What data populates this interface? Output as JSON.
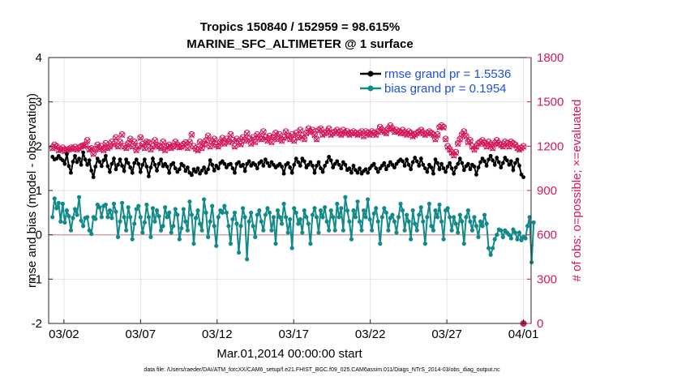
{
  "chart_data": {
    "type": "line",
    "title": "Tropics 150840 / 152959 = 98.615%",
    "subtitle": "MARINE_SFC_ALTIMETER @ 1 surface",
    "xlabel": "Mar.01,2014 00:00:00 start",
    "ylabel": "rmse and bias (model - observation)",
    "y2label": "# of obs: o=possible; ×=evaluated",
    "footer": "data file: /Users/raeder/DAI/ATM_forcXX/CAM6_setup/f.e21.FHIST_BGC.f09_025.CAM6assim.011/Diags_NTrS_2014-03/obs_diag_output.nc",
    "xlim": [
      0,
      31.5
    ],
    "ylim": [
      -2,
      4
    ],
    "y2lim": [
      0,
      1800
    ],
    "x_ticks": [
      {
        "v": 1,
        "label": "03/02"
      },
      {
        "v": 6,
        "label": "03/07"
      },
      {
        "v": 11,
        "label": "03/12"
      },
      {
        "v": 16,
        "label": "03/17"
      },
      {
        "v": 21,
        "label": "03/22"
      },
      {
        "v": 26,
        "label": "03/27"
      },
      {
        "v": 31,
        "label": "04/01"
      }
    ],
    "y_ticks": [
      -2,
      -1,
      0,
      1,
      2,
      3,
      4
    ],
    "y2_ticks": [
      0,
      300,
      600,
      900,
      1200,
      1500,
      1800
    ],
    "grid": true,
    "legend_position": "top-right",
    "colors": {
      "rmse": "#000000",
      "bias": "#138a8a",
      "obs": "#d6175c",
      "zero": "#c8a6a6",
      "axis_left": "#000000",
      "axis_right": "#d6175c",
      "legend_text": "#1f4fe0"
    },
    "series": [
      {
        "name": "rmse grand pr = 1.5536",
        "key": "rmse",
        "values": [
          1.76,
          1.7,
          1.72,
          1.78,
          1.72,
          1.68,
          1.6,
          1.82,
          1.55,
          1.4,
          1.65,
          1.78,
          1.64,
          1.72,
          1.58,
          1.86,
          1.7,
          1.58,
          1.68,
          1.45,
          1.3,
          1.54,
          1.72,
          1.65,
          1.55,
          1.68,
          1.78,
          1.55,
          1.42,
          1.6,
          1.72,
          1.48,
          1.58,
          1.7,
          1.56,
          1.44,
          1.7,
          1.62,
          1.52,
          1.4,
          1.62,
          1.7,
          1.6,
          1.42,
          1.58,
          1.7,
          1.54,
          1.32,
          1.52,
          1.72,
          1.58,
          1.45,
          1.6,
          1.7,
          1.55,
          1.6,
          1.54,
          1.4,
          1.58,
          1.62,
          1.5,
          1.42,
          1.48,
          1.6,
          1.56,
          1.44,
          1.52,
          1.4,
          1.35,
          1.48,
          1.42,
          1.5,
          1.38,
          1.45,
          1.52,
          1.4,
          1.48,
          1.68,
          1.58,
          1.45,
          1.56,
          1.5,
          1.62,
          1.66,
          1.6,
          1.52,
          1.58,
          1.6,
          1.5,
          1.4,
          1.6,
          1.64,
          1.55,
          1.58,
          1.44,
          1.6,
          1.66,
          1.56,
          1.62,
          1.58,
          1.5,
          1.62,
          1.66,
          1.56,
          1.7,
          1.62,
          1.55,
          1.64,
          1.58,
          1.52,
          1.56,
          1.6,
          1.54,
          1.38,
          1.58,
          1.62,
          1.52,
          1.4,
          1.58,
          1.72,
          1.64,
          1.56,
          1.72,
          1.66,
          1.52,
          1.58,
          1.64,
          1.56,
          1.4,
          1.56,
          1.64,
          1.5,
          1.42,
          1.56,
          1.64,
          1.76,
          1.68,
          1.52,
          1.6,
          1.66,
          1.58,
          1.5,
          1.64,
          1.58,
          1.46,
          1.5,
          1.4,
          1.56,
          1.46,
          1.4,
          1.5,
          1.38,
          1.44,
          1.48,
          1.4,
          1.5,
          1.56,
          1.6,
          1.5,
          1.42,
          1.5,
          1.56,
          1.62,
          1.48,
          1.56,
          1.64,
          1.58,
          1.52,
          1.6,
          1.66,
          1.7,
          1.66,
          1.56,
          1.7,
          1.58,
          1.48,
          1.64,
          1.74,
          1.66,
          1.56,
          1.72,
          1.58,
          1.5,
          1.42,
          1.58,
          1.52,
          1.38,
          1.7,
          1.62,
          1.48,
          1.6,
          1.5,
          1.42,
          1.54,
          1.62,
          1.5,
          1.38,
          1.52,
          1.6,
          1.72,
          1.62,
          1.46,
          1.55,
          1.6,
          1.48,
          1.58,
          1.54,
          1.36,
          1.52,
          1.64,
          1.72,
          1.66,
          1.56,
          1.7,
          1.78,
          1.68,
          1.58,
          1.74,
          1.64,
          1.52,
          1.62,
          1.74,
          1.68,
          1.58,
          1.66,
          1.46,
          1.62,
          1.7,
          1.56,
          1.36,
          1.3
        ]
      },
      {
        "name": "bias grand pr = 0.1954",
        "key": "bias",
        "values": [
          0.4,
          0.82,
          0.6,
          0.72,
          0.3,
          0.7,
          0.28,
          0.55,
          0.42,
          0.1,
          0.38,
          0.58,
          0.45,
          0.85,
          0.32,
          0.2,
          0.38,
          0.4,
          0.1,
          0.02,
          0.4,
          0.36,
          0.68,
          0.62,
          0.4,
          0.65,
          0.68,
          0.4,
          0.55,
          0.38,
          0.7,
          0.52,
          -0.05,
          0.3,
          0.72,
          0.4,
          0.1,
          0.62,
          0.4,
          -0.1,
          0.25,
          0.58,
          0.65,
          0.4,
          0.05,
          0.28,
          0.68,
          0.4,
          -0.05,
          0.6,
          0.3,
          0.55,
          0.42,
          0.1,
          0.2,
          0.62,
          0.4,
          0.5,
          0.05,
          0.2,
          0.58,
          0.45,
          -0.1,
          0.15,
          0.58,
          0.3,
          0.1,
          0.75,
          0.45,
          -0.2,
          0.38,
          0.55,
          0.25,
          0.1,
          0.8,
          0.5,
          -0.05,
          0.3,
          0.65,
          0.2,
          -0.25,
          0.4,
          0.55,
          0.5,
          0.65,
          0.5,
          0.2,
          -0.2,
          0.35,
          0.5,
          0.25,
          -0.4,
          0.2,
          0.6,
          0.4,
          -0.55,
          0.3,
          0.5,
          0.2,
          -0.05,
          0.45,
          0.55,
          0.3,
          0.1,
          0.45,
          0.6,
          0.5,
          0.1,
          0.4,
          -0.2,
          0.55,
          0.4,
          0.25,
          0.7,
          0.4,
          0.05,
          0.35,
          -0.3,
          0.6,
          0.5,
          0.25,
          0.35,
          0.05,
          0.55,
          0.4,
          0.25,
          -0.2,
          0.45,
          0.6,
          0.4,
          0.05,
          0.55,
          0.4,
          0.62,
          0.3,
          0.1,
          0.55,
          0.4,
          0.1,
          0.7,
          0.4,
          0.6,
          0.1,
          0.85,
          0.55,
          0.3,
          -0.1,
          0.55,
          0.4,
          0.75,
          0.3,
          0.1,
          0.55,
          0.4,
          0.8,
          0.35,
          0.1,
          0.48,
          0.6,
          0.3,
          -0.2,
          0.4,
          0.6,
          0.5,
          0.1,
          0.38,
          0.45,
          0.3,
          0.05,
          0.4,
          0.7,
          0.55,
          0.1,
          0.45,
          0.3,
          -0.1,
          0.55,
          0.25,
          0.1,
          0.45,
          0.62,
          0.3,
          -0.2,
          0.4,
          0.7,
          0.2,
          0.1,
          0.55,
          0.4,
          0.68,
          0.3,
          -0.1,
          0.55,
          0.6,
          0.4,
          0.1,
          0.4,
          0.25,
          0.05,
          0.45,
          0.3,
          -0.2,
          0.4,
          0.55,
          0.3,
          0.1,
          0.4,
          0.2,
          -0.05,
          0.3,
          0.2,
          0.45,
          0.25,
          -0.3,
          -0.45,
          -0.3,
          -0.1,
          0.0,
          0.12,
          0.1,
          -0.05,
          0.1,
          0.05,
          0.0,
          -0.08,
          0.12,
          0.05,
          -0.1,
          0.05,
          -0.12,
          -0.05,
          -0.08,
          0.2,
          0.4,
          -0.62,
          0.28
        ]
      },
      {
        "name": "obs_possible",
        "key": "obs_possible",
        "values": [
          1190,
          1210,
          1200,
          1175,
          1180,
          1190,
          1170,
          1175,
          1180,
          1190,
          1185,
          1195,
          1180,
          1190,
          1200,
          1205,
          1210,
          1240,
          1180,
          1185,
          1150,
          1180,
          1210,
          1185,
          1200,
          1175,
          1220,
          1190,
          1200,
          1230,
          1215,
          1260,
          1200,
          1230,
          1280,
          1200,
          1190,
          1220,
          1250,
          1200,
          1230,
          1175,
          1200,
          1260,
          1215,
          1190,
          1230,
          1225,
          1180,
          1200,
          1240,
          1210,
          1200,
          1190,
          1230,
          1175,
          1200,
          1210,
          1190,
          1200,
          1230,
          1210,
          1195,
          1200,
          1215,
          1225,
          1190,
          1230,
          1280,
          1200,
          1185,
          1175,
          1230,
          1190,
          1215,
          1240,
          1270,
          1200,
          1230,
          1250,
          1210,
          1200,
          1230,
          1255,
          1220,
          1250,
          1230,
          1280,
          1240,
          1200,
          1250,
          1230,
          1215,
          1260,
          1240,
          1290,
          1250,
          1220,
          1260,
          1230,
          1280,
          1260,
          1250,
          1300,
          1260,
          1240,
          1270,
          1230,
          1260,
          1290,
          1250,
          1280,
          1240,
          1260,
          1300,
          1270,
          1250,
          1280,
          1240,
          1290,
          1260,
          1310,
          1270,
          1250,
          1290,
          1320,
          1300,
          1310,
          1280,
          1250,
          1310,
          1320,
          1280,
          1290,
          1300,
          1320,
          1280,
          1290,
          1300,
          1310,
          1290,
          1280,
          1310,
          1290,
          1300,
          1280,
          1290,
          1300,
          1290,
          1280,
          1290,
          1300,
          1270,
          1300,
          1290,
          1280,
          1300,
          1290,
          1280,
          1300,
          1330,
          1310,
          1300,
          1290,
          1320,
          1340,
          1320,
          1300,
          1310,
          1300,
          1290,
          1310,
          1290,
          1280,
          1300,
          1290,
          1270,
          1280,
          1290,
          1300,
          1310,
          1290,
          1280,
          1290,
          1300,
          1290,
          1280,
          1250,
          1280,
          1330,
          1340,
          1330,
          1250,
          1200,
          1180,
          1160,
          1140,
          1160,
          1220,
          1250,
          1280,
          1300,
          1270,
          1230,
          1240,
          1200,
          1180,
          1200,
          1220,
          1230,
          1240,
          1220,
          1200,
          1230,
          1210,
          1190,
          1220,
          1240,
          1220,
          1210,
          1200,
          1230,
          1220,
          1200,
          1230,
          1220,
          1210,
          1190,
          1180,
          1190,
          1200
        ]
      },
      {
        "name": "obs_evaluated",
        "key": "obs_evaluated",
        "values": [
          1185,
          1205,
          1195,
          1170,
          1175,
          1185,
          1165,
          1170,
          1175,
          1185,
          1180,
          1190,
          1175,
          1185,
          1195,
          1200,
          1205,
          1235,
          1175,
          1180,
          1145,
          1175,
          1205,
          1180,
          1195,
          1170,
          1215,
          1185,
          1195,
          1225,
          1210,
          1255,
          1195,
          1225,
          1275,
          1195,
          1185,
          1215,
          1245,
          1195,
          1225,
          1170,
          1195,
          1255,
          1210,
          1185,
          1225,
          1220,
          1175,
          1195,
          1235,
          1205,
          1195,
          1185,
          1225,
          1170,
          1195,
          1205,
          1185,
          1195,
          1225,
          1205,
          1190,
          1195,
          1210,
          1220,
          1185,
          1225,
          1275,
          1195,
          1180,
          1170,
          1225,
          1185,
          1210,
          1235,
          1265,
          1195,
          1225,
          1245,
          1205,
          1195,
          1225,
          1250,
          1215,
          1245,
          1225,
          1275,
          1235,
          1195,
          1245,
          1225,
          1210,
          1255,
          1235,
          1285,
          1245,
          1215,
          1255,
          1225,
          1275,
          1255,
          1245,
          1295,
          1255,
          1235,
          1265,
          1225,
          1255,
          1285,
          1245,
          1275,
          1235,
          1255,
          1295,
          1265,
          1245,
          1275,
          1235,
          1285,
          1255,
          1305,
          1265,
          1245,
          1285,
          1315,
          1295,
          1305,
          1275,
          1245,
          1305,
          1315,
          1275,
          1285,
          1295,
          1315,
          1275,
          1285,
          1295,
          1305,
          1285,
          1275,
          1305,
          1285,
          1295,
          1275,
          1285,
          1295,
          1285,
          1275,
          1285,
          1295,
          1265,
          1295,
          1285,
          1275,
          1295,
          1285,
          1275,
          1295,
          1325,
          1305,
          1295,
          1285,
          1315,
          1335,
          1315,
          1295,
          1305,
          1295,
          1285,
          1305,
          1285,
          1275,
          1295,
          1285,
          1265,
          1275,
          1285,
          1295,
          1305,
          1285,
          1275,
          1285,
          1295,
          1285,
          1275,
          1245,
          1275,
          1325,
          1335,
          1325,
          1245,
          1195,
          1175,
          1155,
          1135,
          1155,
          1215,
          1245,
          1275,
          1295,
          1265,
          1225,
          1235,
          1195,
          1175,
          1195,
          1215,
          1225,
          1235,
          1215,
          1195,
          1225,
          1205,
          1185,
          1215,
          1235,
          1215,
          1205,
          1195,
          1225,
          1215,
          1195,
          1225,
          1215,
          1205,
          1185,
          1175,
          1185,
          1195
        ]
      }
    ]
  }
}
